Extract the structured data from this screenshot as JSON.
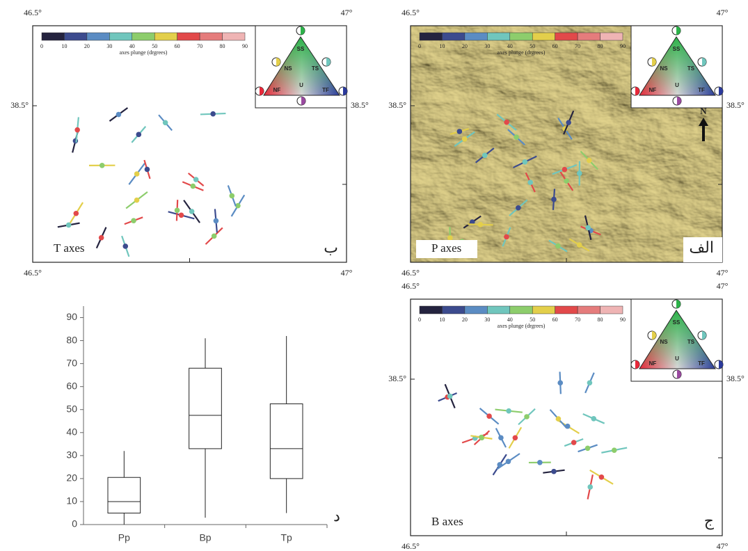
{
  "maps": [
    {
      "label": "T axes",
      "corner": "ب",
      "lon_min": "46.5°",
      "lon_max": "47°",
      "lat": "38.5°"
    },
    {
      "label": "P axes",
      "corner": "الف",
      "lon_min": "46.5°",
      "lon_max": "47°",
      "lat": "38.5°",
      "north": "N"
    },
    {
      "label": "B axes",
      "corner": "ج",
      "lon_min": "46.5°",
      "lon_max": "47°",
      "lat": "38.5°"
    }
  ],
  "colorbar": {
    "title": "axes plunge (drgrees)",
    "ticks": [
      0,
      10,
      20,
      30,
      40,
      50,
      60,
      70,
      80,
      90
    ],
    "colors": [
      "#24233f",
      "#3c4b8e",
      "#5b8cc3",
      "#70c6bd",
      "#8dcd6c",
      "#e3cf4b",
      "#e2494a",
      "#e57c7c",
      "#efb4b4"
    ]
  },
  "triangle": {
    "SS": "SS",
    "NS": "NS",
    "TS": "TS",
    "U": "U",
    "NF": "NF",
    "TF": "TF"
  },
  "chart_data": {
    "type": "box",
    "annotation": "د",
    "categories": [
      "Pp",
      "Bp",
      "Tp"
    ],
    "min": [
      0,
      3,
      5
    ],
    "q1": [
      5,
      33,
      20
    ],
    "median": [
      10,
      47.5,
      33
    ],
    "q3": [
      20.5,
      68,
      52.5
    ],
    "max": [
      32,
      81,
      82
    ],
    "ylim": [
      0,
      95
    ],
    "yticks": [
      0,
      10,
      20,
      30,
      40,
      50,
      60,
      70,
      80,
      90
    ]
  }
}
